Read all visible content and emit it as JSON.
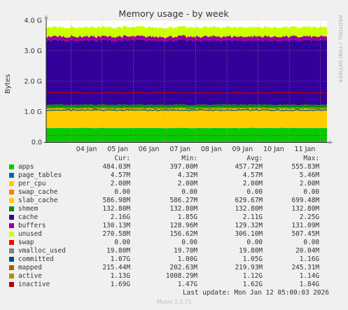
{
  "chart_data": {
    "type": "area",
    "title": "Memory usage - by week",
    "ylabel": "Bytes",
    "side_label": "RRDTOOL / TOBI OETIKER",
    "ylim": [
      0,
      4000000000
    ],
    "y_ticks": [
      {
        "value": 0,
        "label": "0.0"
      },
      {
        "value": 1000000000,
        "label": "1.0 G"
      },
      {
        "value": 2000000000,
        "label": "2.0 G"
      },
      {
        "value": 3000000000,
        "label": "3.0 G"
      },
      {
        "value": 4000000000,
        "label": "4.0 G"
      }
    ],
    "x_range": [
      "2026-01-03T05:00",
      "2026-01-12T05:00"
    ],
    "x_ticks": [
      "04 Jan",
      "05 Jan",
      "06 Jan",
      "07 Jan",
      "08 Jan",
      "09 Jan",
      "10 Jan",
      "11 Jan"
    ],
    "stack_order": [
      "apps",
      "page_tables",
      "per_cpu",
      "swap_cache",
      "slab_cache",
      "shmem",
      "cache",
      "buffers",
      "unused",
      "swap"
    ],
    "line_series": [
      "vmalloc_used",
      "committed",
      "mapped",
      "active",
      "inactive"
    ],
    "columns": [
      "Cur:",
      "Min:",
      "Avg:",
      "Max:"
    ],
    "series": [
      {
        "name": "apps",
        "color": "#00cc00",
        "cur": "484.03M",
        "min": "397.00M",
        "avg": "457.72M",
        "max": "555.83M",
        "level": 457720000
      },
      {
        "name": "page_tables",
        "color": "#0066b3",
        "cur": "4.57M",
        "min": "4.32M",
        "avg": "4.57M",
        "max": "5.46M",
        "level": 4570000
      },
      {
        "name": "per_cpu",
        "color": "#ffcc00",
        "cur": "2.00M",
        "min": "2.00M",
        "avg": "2.00M",
        "max": "2.00M",
        "level": 2000000
      },
      {
        "name": "swap_cache",
        "color": "#ff8000",
        "cur": "0.00",
        "min": "0.00",
        "avg": "0.00",
        "max": "0.00",
        "level": 0
      },
      {
        "name": "slab_cache",
        "color": "#ffcc00",
        "cur": "586.98M",
        "min": "586.27M",
        "avg": "629.67M",
        "max": "699.48M",
        "level": 629670000
      },
      {
        "name": "shmem",
        "color": "#008f00",
        "cur": "132.80M",
        "min": "132.80M",
        "avg": "132.80M",
        "max": "132.80M",
        "level": 132800000
      },
      {
        "name": "cache",
        "color": "#330099",
        "cur": "2.16G",
        "min": "1.85G",
        "avg": "2.11G",
        "max": "2.25G",
        "level": 2110000000
      },
      {
        "name": "buffers",
        "color": "#990099",
        "cur": "130.13M",
        "min": "128.96M",
        "avg": "129.32M",
        "max": "131.09M",
        "level": 129320000
      },
      {
        "name": "unused",
        "color": "#ccff00",
        "cur": "270.58M",
        "min": "156.62M",
        "avg": "306.10M",
        "max": "507.45M",
        "level": 306100000
      },
      {
        "name": "swap",
        "color": "#ff0000",
        "cur": "0.00",
        "min": "0.00",
        "avg": "0.00",
        "max": "0.00",
        "level": 0
      },
      {
        "name": "vmalloc_used",
        "color": "#808080",
        "cur": "19.80M",
        "min": "19.70M",
        "avg": "19.80M",
        "max": "20.04M",
        "level": 19800000
      },
      {
        "name": "committed",
        "color": "#004d80",
        "cur": "1.07G",
        "min": "1.00G",
        "avg": "1.05G",
        "max": "1.16G",
        "level": 1050000000
      },
      {
        "name": "mapped",
        "color": "#b35a00",
        "cur": "215.44M",
        "min": "202.63M",
        "avg": "219.93M",
        "max": "245.31M",
        "level": 219930000
      },
      {
        "name": "active",
        "color": "#b38f00",
        "cur": "1.13G",
        "min": "1008.29M",
        "avg": "1.12G",
        "max": "1.14G",
        "level": 1120000000
      },
      {
        "name": "inactive",
        "color": "#b30000",
        "cur": "1.69G",
        "min": "1.47G",
        "avg": "1.62G",
        "max": "1.84G",
        "level": 1620000000
      }
    ]
  },
  "footer": {
    "last_update": "Last update: Mon Jan 12 05:00:03 2026",
    "munin": "Munin 2.0.73"
  }
}
